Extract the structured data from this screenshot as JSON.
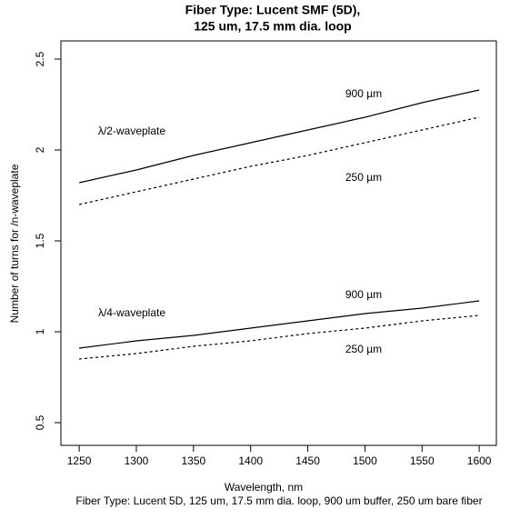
{
  "chart_data": {
    "type": "line",
    "title": [
      "Fiber Type: Lucent SMF (5D),",
      "125 um, 17.5 mm dia. loop"
    ],
    "x_label": "Wavelength, nm",
    "y_label": "Number of turns for    /n-waveplate",
    "caption": "Fiber Type: Lucent 5D, 125 um, 17.5 mm dia. loop, 900 um buffer, 250 um bare fiber",
    "annotations": [
      "λ/2-waveplate",
      "λ/4-waveplate"
    ],
    "x": [
      1250,
      1300,
      1350,
      1400,
      1450,
      1500,
      1550,
      1600
    ],
    "series": [
      {
        "name": "900 µm",
        "color": "#000000",
        "dash": "solid",
        "values": [
          1.82,
          1.89,
          1.97,
          2.04,
          2.11,
          2.18,
          2.26,
          2.33
        ]
      },
      {
        "name": "250 µm",
        "color": "#000000",
        "dash": "dotted",
        "values": [
          1.7,
          1.77,
          1.84,
          1.91,
          1.97,
          2.04,
          2.11,
          2.18
        ]
      },
      {
        "name": "900 µm",
        "color": "#000000",
        "dash": "solid",
        "values": [
          0.91,
          0.95,
          0.98,
          1.02,
          1.06,
          1.1,
          1.13,
          1.17
        ]
      },
      {
        "name": "250 µm",
        "color": "#000000",
        "dash": "dotted",
        "values": [
          0.85,
          0.88,
          0.92,
          0.95,
          0.99,
          1.02,
          1.06,
          1.09
        ]
      }
    ],
    "xlim": [
      1234,
      1615
    ],
    "ylim": [
      0.375,
      2.6
    ],
    "xticks": [
      1250,
      1300,
      1350,
      1400,
      1450,
      1500,
      1550,
      1600
    ],
    "yticks": [
      0.5,
      1.0,
      1.5,
      2.0,
      2.5
    ],
    "grid": false
  }
}
